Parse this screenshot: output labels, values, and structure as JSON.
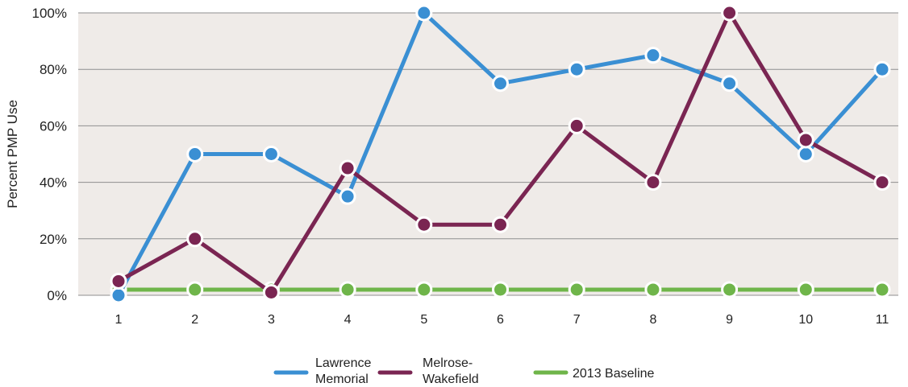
{
  "chart_data": {
    "type": "line",
    "title": "",
    "xlabel": "",
    "ylabel": "Percent PMP Use",
    "categories": [
      "1",
      "2",
      "3",
      "4",
      "5",
      "6",
      "7",
      "8",
      "9",
      "10",
      "11"
    ],
    "ylim": [
      0,
      100
    ],
    "y_ticks": [
      "0%",
      "20%",
      "40%",
      "60%",
      "80%",
      "100%"
    ],
    "grid": true,
    "legend_position": "bottom-center",
    "series": [
      {
        "name": "Lawrence Memorial",
        "legend_lines": [
          "Lawrence",
          "Memorial"
        ],
        "color": "#3a8fd3",
        "values": [
          0,
          50,
          50,
          35,
          100,
          75,
          80,
          85,
          75,
          50,
          80
        ]
      },
      {
        "name": "Melrose-Wakefield",
        "legend_lines": [
          "Melrose-",
          "Wakefield"
        ],
        "color": "#7a2552",
        "values": [
          5,
          20,
          1,
          45,
          25,
          25,
          60,
          40,
          100,
          55,
          40
        ]
      },
      {
        "name": "2013 Baseline",
        "legend_lines": [
          "2013 Baseline"
        ],
        "color": "#6fb54a",
        "values": [
          2,
          2,
          2,
          2,
          2,
          2,
          2,
          2,
          2,
          2,
          2
        ]
      }
    ],
    "colors": {
      "plot_background": "#efebe8",
      "gridline": "#8f8f8f",
      "marker_stroke": "#ffffff"
    }
  }
}
